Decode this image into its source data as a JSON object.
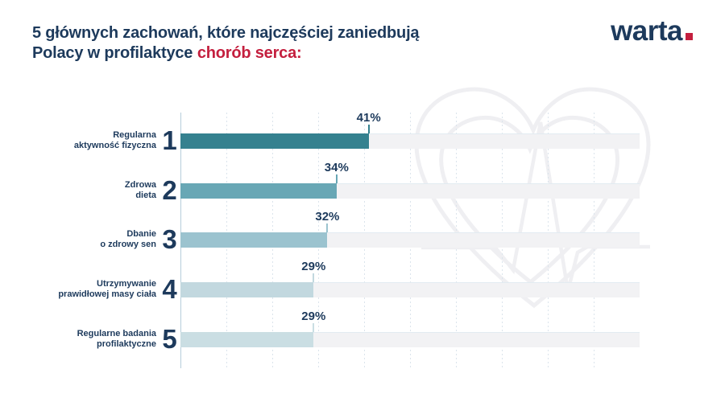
{
  "header": {
    "title_line1": "5 głównych zachowań, które najczęściej zaniedbują",
    "title_line2_prefix": "Polacy w profilaktyce",
    "title_line2_highlight": "chorób serca:",
    "title_color": "#1d3a5c",
    "highlight_color": "#c41f3e"
  },
  "logo": {
    "text": "warta",
    "text_color": "#1d3a5c",
    "dot_color": "#c41f3e"
  },
  "watermark": {
    "name": "heart-with-ekg-outline",
    "stroke_color": "#efeff2"
  },
  "chart_data": {
    "type": "bar",
    "orientation": "horizontal",
    "title": "5 głównych zachowań, które najczęściej zaniedbują Polacy w profilaktyce chorób serca",
    "xlabel": "",
    "ylabel": "",
    "xlim": [
      0,
      100
    ],
    "grid": "vertical-dotted",
    "grid_step_percent": 10,
    "unit": "%",
    "categories": [
      "Regularna aktywność fizyczna",
      "Zdrowa dieta",
      "Dbanie o zdrowy sen",
      "Utrzymywanie prawidłowej masy ciała",
      "Regularne badania profilaktyczne"
    ],
    "values": [
      41,
      34,
      32,
      29,
      29
    ],
    "items": [
      {
        "rank": "1",
        "label_line1": "Regularna",
        "label_line2": "aktywność fizyczna",
        "value": 41,
        "value_label": "41%",
        "color": "#35818F"
      },
      {
        "rank": "2",
        "label_line1": "Zdrowa",
        "label_line2": "dieta",
        "value": 34,
        "value_label": "34%",
        "color": "#68A7B5"
      },
      {
        "rank": "3",
        "label_line1": "Dbanie",
        "label_line2": "o zdrowy sen",
        "value": 32,
        "value_label": "32%",
        "color": "#9BC3CF"
      },
      {
        "rank": "4",
        "label_line1": "Utrzymywanie",
        "label_line2": "prawidłowej masy ciała",
        "value": 29,
        "value_label": "29%",
        "color": "#C2D8DF"
      },
      {
        "rank": "5",
        "label_line1": "Regularne badania",
        "label_line2": "profilaktyczne",
        "value": 29,
        "value_label": "29%",
        "color": "#CADEE3"
      }
    ],
    "track_color": "#f2f2f4",
    "axis_color": "#b7cedb",
    "gridline_color": "#dbe4ec",
    "value_label_color": "#1d3a5c"
  }
}
